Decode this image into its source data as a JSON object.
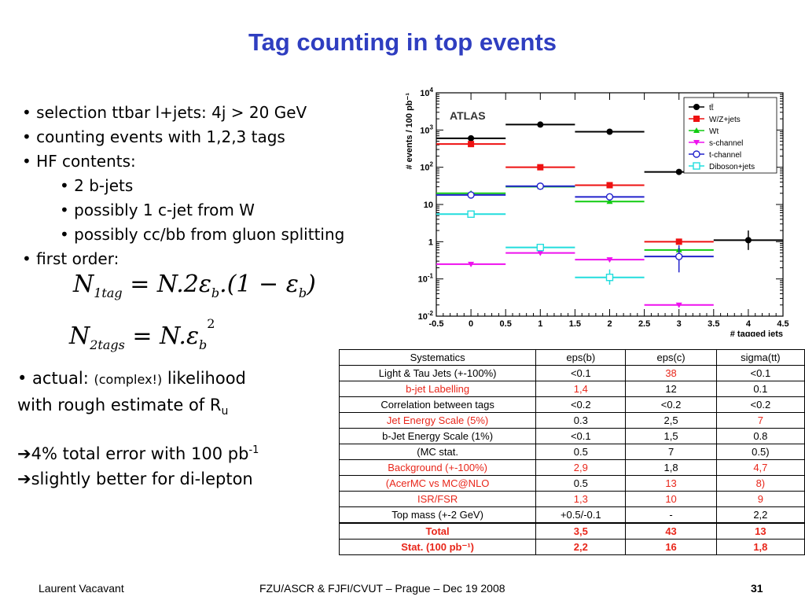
{
  "title": "Tag counting in top events",
  "bullets": [
    {
      "text": "• selection ttbar l+jets: 4j > 20 GeV",
      "level": 0
    },
    {
      "text": "• counting events with 1,2,3 tags",
      "level": 0
    },
    {
      "text": "• HF contents:",
      "level": 0
    },
    {
      "text": "• 2 b-jets",
      "level": 1
    },
    {
      "text": "• possibly 1 c-jet from W",
      "level": 1
    },
    {
      "text": "• possibly cc/bb from gluon splitting",
      "level": 1
    },
    {
      "text": "• first order:",
      "level": 0
    }
  ],
  "formula1": {
    "lhs": "N",
    "lhs_sub": "1tag",
    "rhs": "= N.2ε",
    "rhs_sub": "b",
    "rhs2": ".(1 − ε",
    "rhs2_sub": "b",
    "close": ")"
  },
  "formula2": {
    "lhs": "N",
    "lhs_sub": "2tags",
    "rhs": "= N.ε",
    "rhs_sub": "b",
    "sup": "2"
  },
  "actual": {
    "prefix": "• actual: ",
    "small": "(complex!)",
    "suffix": " likelihood",
    "line2": "with rough estimate of R",
    "line2_sub": "u"
  },
  "result": {
    "line1": "➔4% total error with 100 pb",
    "line1_sup": "-1",
    "line2": "➔slightly better for di-lepton"
  },
  "footer": {
    "left": "Laurent Vacavant",
    "center": "FZU/ASCR & FJFI/CVUT – Prague – Dec 19 2008",
    "page": "31"
  },
  "systematics_table": {
    "headers": [
      "Systematics",
      "eps(b)",
      "eps(c)",
      "sigma(tt)"
    ],
    "rows": [
      {
        "cells": [
          "Light & Tau Jets (+-100%)",
          "<0.1",
          "38",
          "<0.1"
        ],
        "colors": [
          "#000000",
          "#000000",
          "#e8261a",
          "#000000"
        ],
        "bold": false
      },
      {
        "cells": [
          "b-jet Labelling",
          "1,4",
          "12",
          "0.1"
        ],
        "colors": [
          "#e8261a",
          "#e8261a",
          "#000000",
          "#000000"
        ],
        "bold": false
      },
      {
        "cells": [
          "Correlation between tags",
          "<0.2",
          "<0.2",
          "<0.2"
        ],
        "colors": [
          "#000000",
          "#000000",
          "#000000",
          "#000000"
        ],
        "bold": false
      },
      {
        "cells": [
          "Jet Energy Scale (5%)",
          "0.3",
          "2,5",
          "7"
        ],
        "colors": [
          "#e8261a",
          "#000000",
          "#000000",
          "#e8261a"
        ],
        "bold": false
      },
      {
        "cells": [
          "b-Jet Energy Scale (1%)",
          "<0.1",
          "1,5",
          "0.8"
        ],
        "colors": [
          "#000000",
          "#000000",
          "#000000",
          "#000000"
        ],
        "bold": false
      },
      {
        "cells": [
          "(MC stat.",
          "0.5",
          "7",
          "0.5)"
        ],
        "colors": [
          "#000000",
          "#000000",
          "#000000",
          "#000000"
        ],
        "bold": false
      },
      {
        "cells": [
          "Background (+-100%)",
          "2,9",
          "1,8",
          "4,7"
        ],
        "colors": [
          "#e8261a",
          "#e8261a",
          "#000000",
          "#e8261a"
        ],
        "bold": false
      },
      {
        "cells": [
          "(AcerMC vs MC@NLO",
          "0.5",
          "13",
          "8)"
        ],
        "colors": [
          "#e8261a",
          "#000000",
          "#e8261a",
          "#e8261a"
        ],
        "bold": false
      },
      {
        "cells": [
          "ISR/FSR",
          "1,3",
          "10",
          "9"
        ],
        "colors": [
          "#e8261a",
          "#e8261a",
          "#e8261a",
          "#e8261a"
        ],
        "bold": false
      },
      {
        "cells": [
          "Top mass (+-2 GeV)",
          "+0.5/-0.1",
          "-",
          "2,2"
        ],
        "colors": [
          "#000000",
          "#000000",
          "#000000",
          "#000000"
        ],
        "bold": false
      },
      {
        "cells": [
          "Total",
          "3,5",
          "43",
          "13"
        ],
        "colors": [
          "#e8261a",
          "#e8261a",
          "#e8261a",
          "#e8261a"
        ],
        "bold": true
      },
      {
        "cells": [
          "Stat. (100 pb⁻¹)",
          "2,2",
          "16",
          "1,8"
        ],
        "colors": [
          "#e8261a",
          "#e8261a",
          "#e8261a",
          "#e8261a"
        ],
        "bold": true
      }
    ]
  },
  "chart_data": {
    "type": "scatter",
    "title": "",
    "label": "ATLAS",
    "xlabel": "# tagged jets",
    "ylabel": "# events / 100 pb⁻¹",
    "xlim": [
      -0.5,
      4.5
    ],
    "ylim": [
      0.01,
      10000
    ],
    "log_y": true,
    "x_ticks": [
      "-0.5",
      "0",
      "0.5",
      "1",
      "1.5",
      "2",
      "2.5",
      "3",
      "3.5",
      "4",
      "4.5"
    ],
    "y_ticks": [
      {
        "base": "10",
        "exp": "-2"
      },
      {
        "base": "10",
        "exp": "-1"
      },
      {
        "base": "1",
        "exp": ""
      },
      {
        "base": "10",
        "exp": ""
      },
      {
        "base": "10",
        "exp": "2"
      },
      {
        "base": "10",
        "exp": "3"
      },
      {
        "base": "10",
        "exp": "4"
      }
    ],
    "legend_position": "top-right",
    "series": [
      {
        "name": "tt̄",
        "color": "#000000",
        "marker": "circle-filled",
        "points": [
          {
            "x": 0,
            "y": 600
          },
          {
            "x": 1,
            "y": 1400
          },
          {
            "x": 2,
            "y": 900
          },
          {
            "x": 3,
            "y": 75
          },
          {
            "x": 4,
            "y": 1.1,
            "err": [
              0.6,
              2.0
            ]
          }
        ]
      },
      {
        "name": "W/Z+jets",
        "color": "#ee1111",
        "marker": "square-filled",
        "points": [
          {
            "x": 0,
            "y": 420
          },
          {
            "x": 1,
            "y": 100
          },
          {
            "x": 2,
            "y": 33
          },
          {
            "x": 3,
            "y": 1.0
          }
        ]
      },
      {
        "name": "Wt",
        "color": "#11cc11",
        "marker": "triangle-up",
        "points": [
          {
            "x": 0,
            "y": 20
          },
          {
            "x": 1,
            "y": 30
          },
          {
            "x": 2,
            "y": 12
          },
          {
            "x": 3,
            "y": 0.6
          }
        ]
      },
      {
        "name": "s-channel",
        "color": "#ee11ee",
        "marker": "triangle-down",
        "points": [
          {
            "x": 0,
            "y": 0.25
          },
          {
            "x": 1,
            "y": 0.5
          },
          {
            "x": 2,
            "y": 0.33
          },
          {
            "x": 3,
            "y": 0.02
          }
        ]
      },
      {
        "name": "t-channel",
        "color": "#2222cc",
        "marker": "circle-open",
        "points": [
          {
            "x": 0,
            "y": 18
          },
          {
            "x": 1,
            "y": 31
          },
          {
            "x": 2,
            "y": 16
          },
          {
            "x": 3,
            "y": 0.4,
            "err": [
              0.15,
              0.8
            ]
          }
        ]
      },
      {
        "name": "Diboson+jets",
        "color": "#22dddd",
        "marker": "square-open",
        "points": [
          {
            "x": 0,
            "y": 5.5
          },
          {
            "x": 1,
            "y": 0.7
          },
          {
            "x": 2,
            "y": 0.11,
            "err": [
              0.07,
              0.18
            ]
          }
        ]
      }
    ]
  }
}
